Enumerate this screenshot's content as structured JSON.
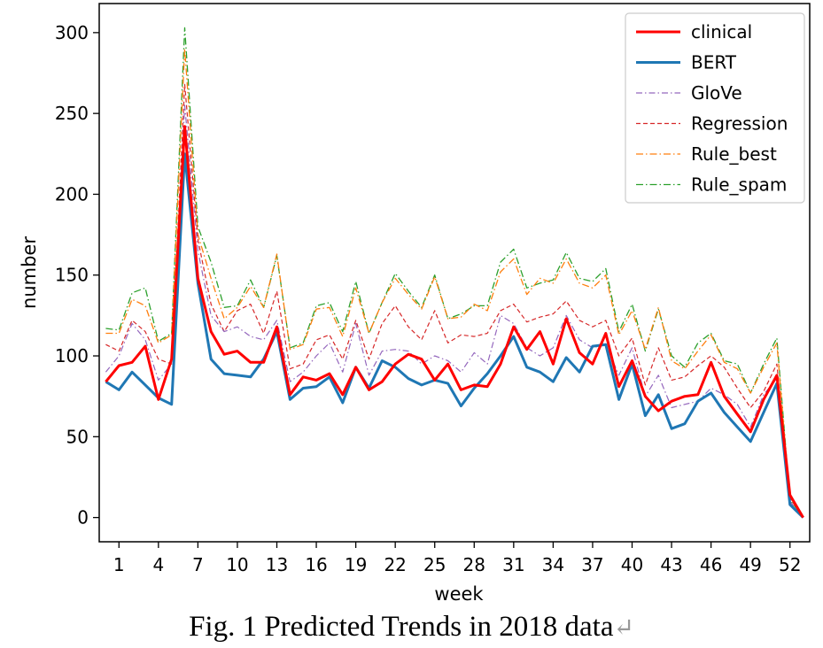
{
  "chart_data": {
    "type": "line",
    "xlabel": "week",
    "ylabel": "number",
    "xlim": [
      -0.5,
      53.5
    ],
    "ylim": [
      -15,
      318
    ],
    "xticks": [
      1,
      4,
      7,
      10,
      13,
      16,
      19,
      22,
      25,
      28,
      31,
      34,
      37,
      40,
      43,
      46,
      49,
      52
    ],
    "yticks": [
      0,
      50,
      100,
      150,
      200,
      250,
      300
    ],
    "grid": false,
    "legend_position": "top-right",
    "x": [
      0,
      1,
      2,
      3,
      4,
      5,
      6,
      7,
      8,
      9,
      10,
      11,
      12,
      13,
      14,
      15,
      16,
      17,
      18,
      19,
      20,
      21,
      22,
      23,
      24,
      25,
      26,
      27,
      28,
      29,
      30,
      31,
      32,
      33,
      34,
      35,
      36,
      37,
      38,
      39,
      40,
      41,
      42,
      43,
      44,
      45,
      46,
      47,
      48,
      49,
      50,
      51,
      52,
      53
    ],
    "series": [
      {
        "name": "clinical",
        "color": "#ff0000",
        "style": "solid",
        "values": [
          84,
          94,
          96,
          106,
          73,
          98,
          242,
          148,
          115,
          101,
          103,
          96,
          96,
          118,
          76,
          87,
          85,
          89,
          76,
          93,
          79,
          84,
          95,
          101,
          98,
          85,
          95,
          79,
          82,
          81,
          95,
          118,
          104,
          115,
          95,
          123,
          102,
          95,
          114,
          81,
          97,
          75,
          66,
          72,
          75,
          76,
          96,
          75,
          64,
          53,
          73,
          88,
          14,
          0
        ]
      },
      {
        "name": "BERT",
        "color": "#1f77b4",
        "style": "solid",
        "values": [
          84,
          79,
          90,
          82,
          74,
          70,
          225,
          145,
          98,
          89,
          88,
          87,
          98,
          115,
          73,
          80,
          81,
          87,
          71,
          93,
          80,
          97,
          93,
          86,
          82,
          85,
          83,
          69,
          80,
          89,
          100,
          112,
          93,
          90,
          84,
          99,
          90,
          106,
          107,
          73,
          95,
          63,
          76,
          55,
          58,
          72,
          77,
          65,
          56,
          47,
          65,
          83,
          8,
          0
        ]
      },
      {
        "name": "GloVe",
        "color": "#9467bd",
        "style": "dashdot-thin",
        "values": [
          90,
          100,
          120,
          110,
          85,
          95,
          255,
          165,
          125,
          115,
          118,
          112,
          110,
          122,
          84,
          90,
          100,
          108,
          90,
          120,
          88,
          103,
          104,
          103,
          95,
          100,
          97,
          90,
          102,
          95,
          125,
          120,
          105,
          100,
          105,
          125,
          110,
          105,
          107,
          88,
          105,
          75,
          88,
          68,
          70,
          72,
          80,
          76,
          70,
          56,
          76,
          86,
          10,
          0
        ]
      },
      {
        "name": "Regression",
        "color": "#d62728",
        "style": "dashed-thin",
        "values": [
          107,
          103,
          122,
          115,
          98,
          95,
          268,
          172,
          132,
          115,
          128,
          132,
          114,
          140,
          92,
          95,
          110,
          113,
          98,
          122,
          98,
          120,
          131,
          118,
          110,
          128,
          108,
          113,
          112,
          114,
          128,
          132,
          121,
          124,
          126,
          134,
          122,
          118,
          122,
          100,
          111,
          82,
          105,
          85,
          87,
          94,
          100,
          93,
          80,
          68,
          78,
          95,
          12,
          0
        ]
      },
      {
        "name": "Rule_best",
        "color": "#ff7f0e",
        "style": "dashdot",
        "values": [
          114,
          114,
          135,
          131,
          108,
          113,
          290,
          175,
          148,
          123,
          130,
          143,
          130,
          163,
          104,
          107,
          129,
          130,
          112,
          142,
          114,
          133,
          148,
          138,
          129,
          149,
          123,
          124,
          132,
          128,
          152,
          160,
          138,
          148,
          145,
          160,
          145,
          142,
          150,
          113,
          128,
          104,
          130,
          97,
          92,
          103,
          113,
          96,
          92,
          77,
          93,
          108,
          10,
          0
        ]
      },
      {
        "name": "Rule_spam",
        "color": "#2ca02c",
        "style": "dashdot",
        "values": [
          117,
          116,
          139,
          142,
          109,
          114,
          303,
          180,
          158,
          130,
          131,
          147,
          130,
          162,
          105,
          108,
          131,
          133,
          115,
          146,
          114,
          133,
          151,
          140,
          130,
          150,
          123,
          126,
          131,
          131,
          158,
          166,
          142,
          145,
          147,
          164,
          148,
          146,
          154,
          115,
          132,
          103,
          129,
          100,
          93,
          108,
          114,
          97,
          95,
          77,
          95,
          111,
          11,
          0
        ]
      }
    ]
  },
  "caption": {
    "text": "Fig. 1   Predicted Trends in 2018 data",
    "return_mark": "↵"
  }
}
